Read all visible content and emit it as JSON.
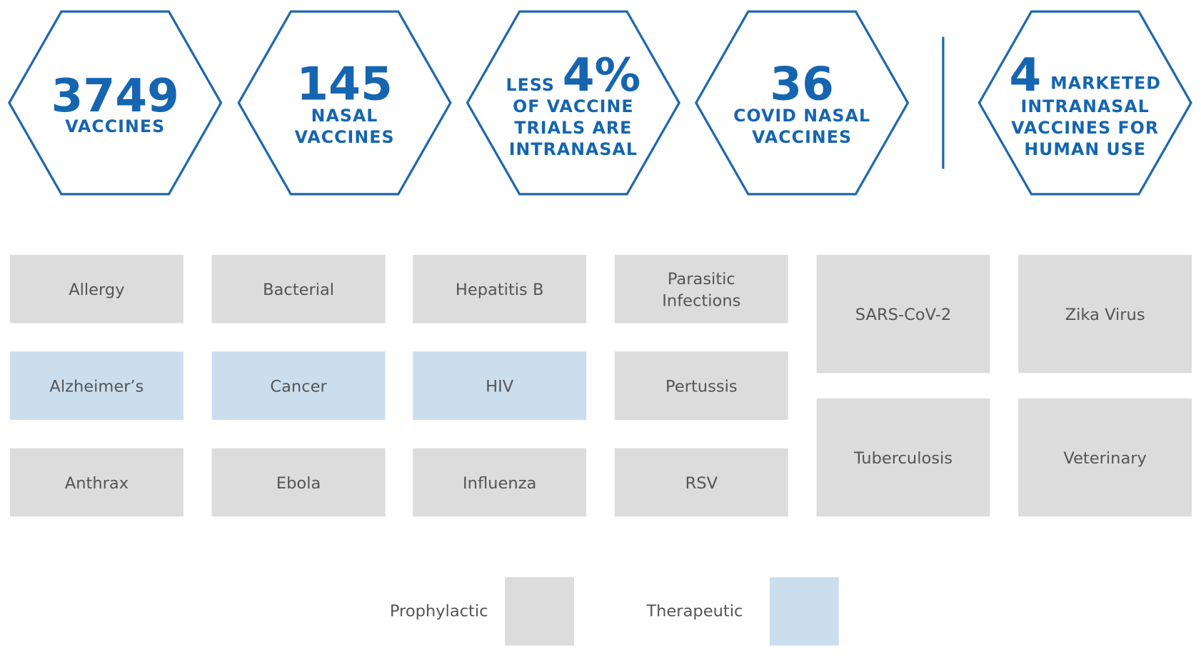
{
  "hexagons": [
    {
      "big": "3749",
      "lines": [
        "VACCINES"
      ]
    },
    {
      "big": "145",
      "lines": [
        "NASAL",
        "VACCINES"
      ]
    },
    {
      "prefix": "LESS",
      "big": "4%",
      "lines": [
        "OF VACCINE",
        "TRIALS ARE",
        "INTRANASAL"
      ]
    },
    {
      "big": "36",
      "lines": [
        "COVID NASAL",
        "VACCINES"
      ]
    },
    {
      "big": "4",
      "suffix": "MARKETED",
      "lines": [
        "INTRANASAL",
        "VACCINES FOR",
        "HUMAN USE"
      ]
    }
  ],
  "hex_color": "#1f67ad",
  "columns": [
    [
      {
        "lines": [
          "Allergy"
        ],
        "color": "#dcdcdc"
      },
      {
        "lines": [
          "Alzheimer’s"
        ],
        "color": "#cbdeee"
      },
      {
        "lines": [
          "Anthrax"
        ],
        "color": "#dcdcdc"
      }
    ],
    [
      {
        "lines": [
          "Bacterial"
        ],
        "color": "#dcdcdc"
      },
      {
        "lines": [
          "Cancer"
        ],
        "color": "#cbdeee"
      },
      {
        "lines": [
          "Ebola"
        ],
        "color": "#dcdcdc"
      }
    ],
    [
      {
        "lines": [
          "Hepatitis B"
        ],
        "color": "#dcdcdc"
      },
      {
        "lines": [
          "HIV"
        ],
        "color": "#cbdeee"
      },
      {
        "lines": [
          "Influenza"
        ],
        "color": "#dcdcdc"
      }
    ],
    [
      {
        "lines": [
          "Parasitic",
          "Infections"
        ],
        "color": "#dcdcdc"
      },
      {
        "lines": [
          "Pertussis"
        ],
        "color": "#dcdcdc"
      },
      {
        "lines": [
          "RSV"
        ],
        "color": "#dcdcdc"
      }
    ],
    [
      {
        "lines": [
          "SARS-CoV-2"
        ],
        "color": "#dcdcdc"
      },
      {
        "lines": [
          "Tuberculosis"
        ],
        "color": "#dcdcdc"
      }
    ],
    [
      {
        "lines": [
          "Zika Virus"
        ],
        "color": "#dcdcdc"
      },
      {
        "lines": [
          "Veterinary"
        ],
        "color": "#dcdcdc"
      }
    ]
  ],
  "legend": [
    {
      "label": "Prophylactic",
      "color": "#dcdcdc"
    },
    {
      "label": "Therapeutic",
      "color": "#cbdeee"
    }
  ]
}
